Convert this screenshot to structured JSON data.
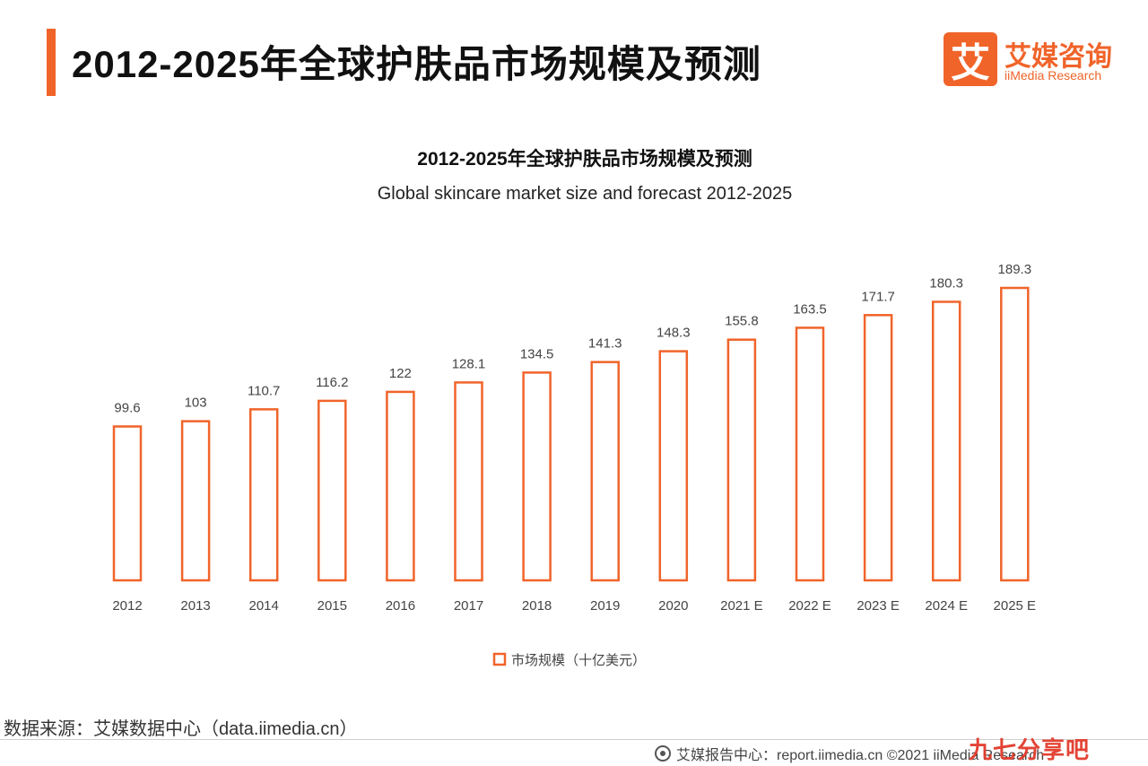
{
  "header": {
    "title": "2012-2025年全球护肤品市场规模及预测",
    "logo_mark": "艾",
    "logo_cn": "艾媒咨询",
    "logo_en": "iiMedia Research"
  },
  "colors": {
    "accent": "#f0642a",
    "bar_stroke": "#f0642a",
    "text": "#333333"
  },
  "chart_data": {
    "type": "bar",
    "title": "2012-2025年全球护肤品市场规模及预测",
    "subtitle": "Global skincare market size and forecast 2012-2025",
    "categories": [
      "2012",
      "2013",
      "2014",
      "2015",
      "2016",
      "2017",
      "2018",
      "2019",
      "2020",
      "2021 E",
      "2022 E",
      "2023 E",
      "2024 E",
      "2025 E"
    ],
    "series": [
      {
        "name": "市场规模（十亿美元）",
        "values": [
          99.6,
          103,
          110.7,
          116.2,
          122,
          128.1,
          134.5,
          141.3,
          148.3,
          155.8,
          163.5,
          171.7,
          180.3,
          189.3
        ]
      }
    ],
    "value_labels": [
      "99.6",
      "103",
      "110.7",
      "116.2",
      "122",
      "128.1",
      "134.5",
      "141.3",
      "148.3",
      "155.8",
      "163.5",
      "171.7",
      "180.3",
      "189.3"
    ],
    "xlabel": "",
    "ylabel": "",
    "ylim": [
      0,
      189.3
    ],
    "grid": false,
    "legend_position": "bottom-center"
  },
  "source_text": "数据来源：艾媒数据中心（data.iimedia.cn）",
  "footer_text": "艾媒报告中心：report.iimedia.cn   ©2021  iiMedia Research",
  "watermark": "九七分享吧"
}
